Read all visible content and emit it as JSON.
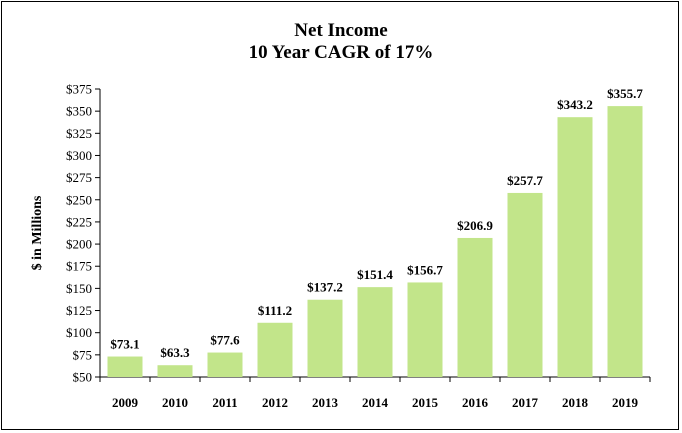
{
  "chart_data": {
    "type": "bar",
    "title": "Net Income",
    "subtitle": "10 Year CAGR of 17%",
    "xlabel": "",
    "ylabel": "$ in Millions",
    "categories": [
      "2009",
      "2010",
      "2011",
      "2012",
      "2013",
      "2014",
      "2015",
      "2016",
      "2017",
      "2018",
      "2019"
    ],
    "values": [
      73.1,
      63.3,
      77.6,
      111.2,
      137.2,
      151.4,
      156.7,
      206.9,
      257.7,
      343.2,
      355.7
    ],
    "value_labels": [
      "$73.1",
      "$63.3",
      "$77.6",
      "$111.2",
      "$137.2",
      "$151.4",
      "$156.7",
      "$206.9",
      "$257.7",
      "$343.2",
      "$355.7"
    ],
    "ylim": [
      50,
      375
    ],
    "yticks": [
      50,
      75,
      100,
      125,
      150,
      175,
      200,
      225,
      250,
      275,
      300,
      325,
      350,
      375
    ],
    "ytick_labels": [
      "$50",
      "$75",
      "$100",
      "$125",
      "$150",
      "$175",
      "$200",
      "$225",
      "$250",
      "$275",
      "$300",
      "$325",
      "$350",
      "$375"
    ],
    "bar_color": "#c2e58a",
    "grid": false,
    "legend": "none"
  }
}
